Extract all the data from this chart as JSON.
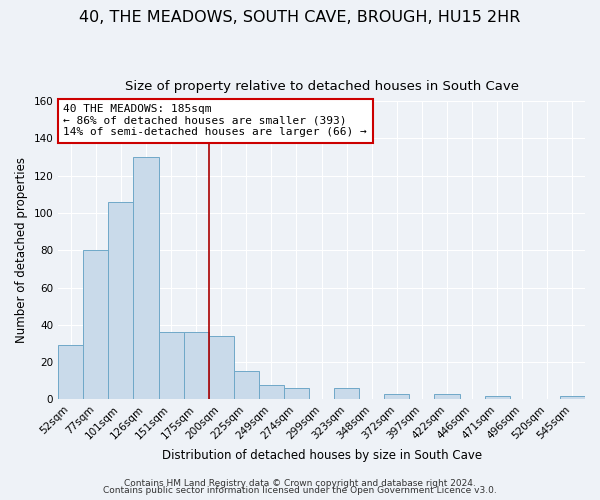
{
  "title": "40, THE MEADOWS, SOUTH CAVE, BROUGH, HU15 2HR",
  "subtitle": "Size of property relative to detached houses in South Cave",
  "xlabel": "Distribution of detached houses by size in South Cave",
  "ylabel": "Number of detached properties",
  "bin_labels": [
    "52sqm",
    "77sqm",
    "101sqm",
    "126sqm",
    "151sqm",
    "175sqm",
    "200sqm",
    "225sqm",
    "249sqm",
    "274sqm",
    "299sqm",
    "323sqm",
    "348sqm",
    "372sqm",
    "397sqm",
    "422sqm",
    "446sqm",
    "471sqm",
    "496sqm",
    "520sqm",
    "545sqm"
  ],
  "bar_values": [
    29,
    80,
    106,
    130,
    36,
    36,
    34,
    15,
    8,
    6,
    0,
    6,
    0,
    3,
    0,
    3,
    0,
    2,
    0,
    0,
    2
  ],
  "bar_color": "#c9daea",
  "bar_edge_color": "#6fa8c8",
  "vline_x": 6.0,
  "vline_color": "#aa0000",
  "annotation_text": "40 THE MEADOWS: 185sqm\n← 86% of detached houses are smaller (393)\n14% of semi-detached houses are larger (66) →",
  "annotation_box_color": "#ffffff",
  "annotation_box_edge_color": "#cc0000",
  "ylim": [
    0,
    160
  ],
  "yticks": [
    0,
    20,
    40,
    60,
    80,
    100,
    120,
    140,
    160
  ],
  "footer1": "Contains HM Land Registry data © Crown copyright and database right 2024.",
  "footer2": "Contains public sector information licensed under the Open Government Licence v3.0.",
  "background_color": "#eef2f7",
  "grid_color": "#ffffff",
  "title_fontsize": 11.5,
  "subtitle_fontsize": 9.5,
  "axis_label_fontsize": 8.5,
  "tick_fontsize": 7.5,
  "footer_fontsize": 6.5,
  "annotation_fontsize": 8
}
